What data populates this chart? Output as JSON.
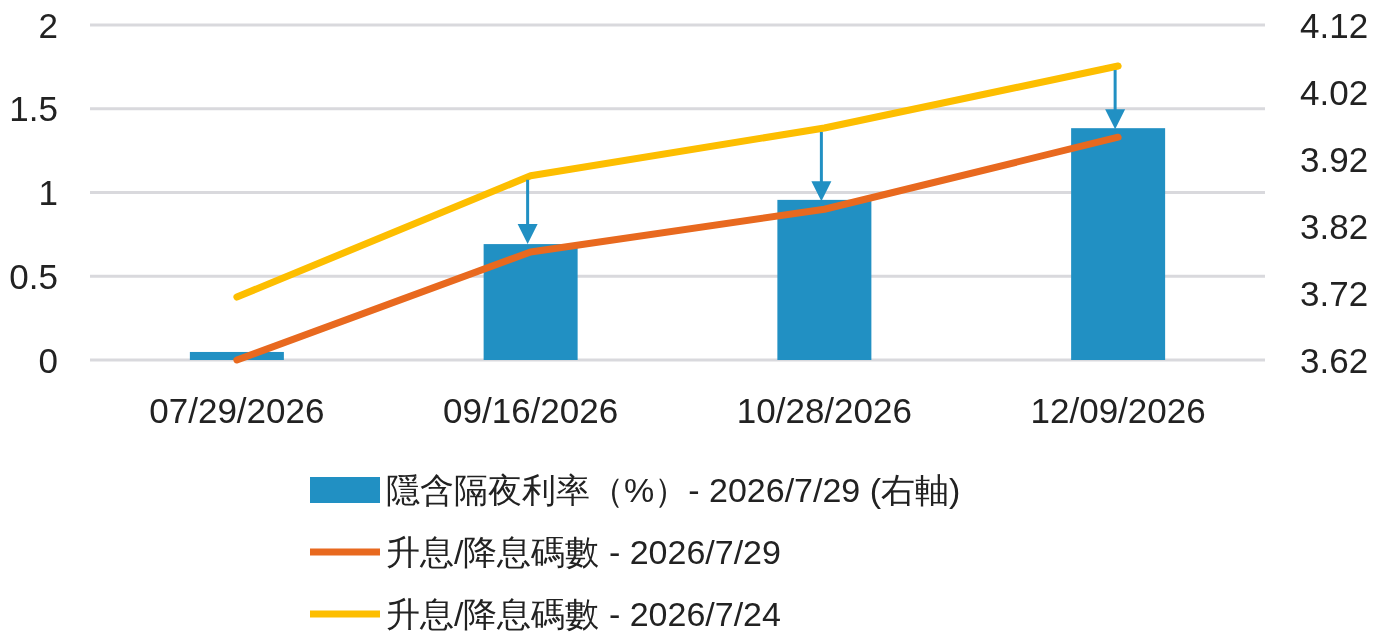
{
  "chart_data": {
    "type": "bar",
    "categories": [
      "07/29/2026",
      "09/16/2026",
      "10/28/2026",
      "12/09/2026"
    ],
    "series": [
      {
        "name": "隱含隔夜利率（%）- 2026/7/29 (右軸)",
        "axis": "y2",
        "color": "#2190c3",
        "values": [
          3.632,
          3.793,
          3.859,
          3.966
        ]
      },
      {
        "name": "升息/降息碼數 - 2026/7/29",
        "type": "line",
        "color": "#e8691f",
        "values": [
          0,
          0.645,
          0.9,
          1.33
        ]
      },
      {
        "name": "升息/降息碼數 - 2026/7/24",
        "type": "line",
        "color": "#fdbe00",
        "values": [
          0.376,
          1.1,
          1.385,
          1.755
        ]
      }
    ],
    "ylim": [
      0,
      2
    ],
    "yticks": [
      0,
      0.5,
      1,
      1.5,
      2
    ],
    "y2lim": [
      3.62,
      4.12
    ],
    "y2ticks": [
      3.62,
      3.72,
      3.82,
      3.92,
      4.02,
      4.12
    ],
    "grid": "y",
    "legend": "bottom"
  }
}
